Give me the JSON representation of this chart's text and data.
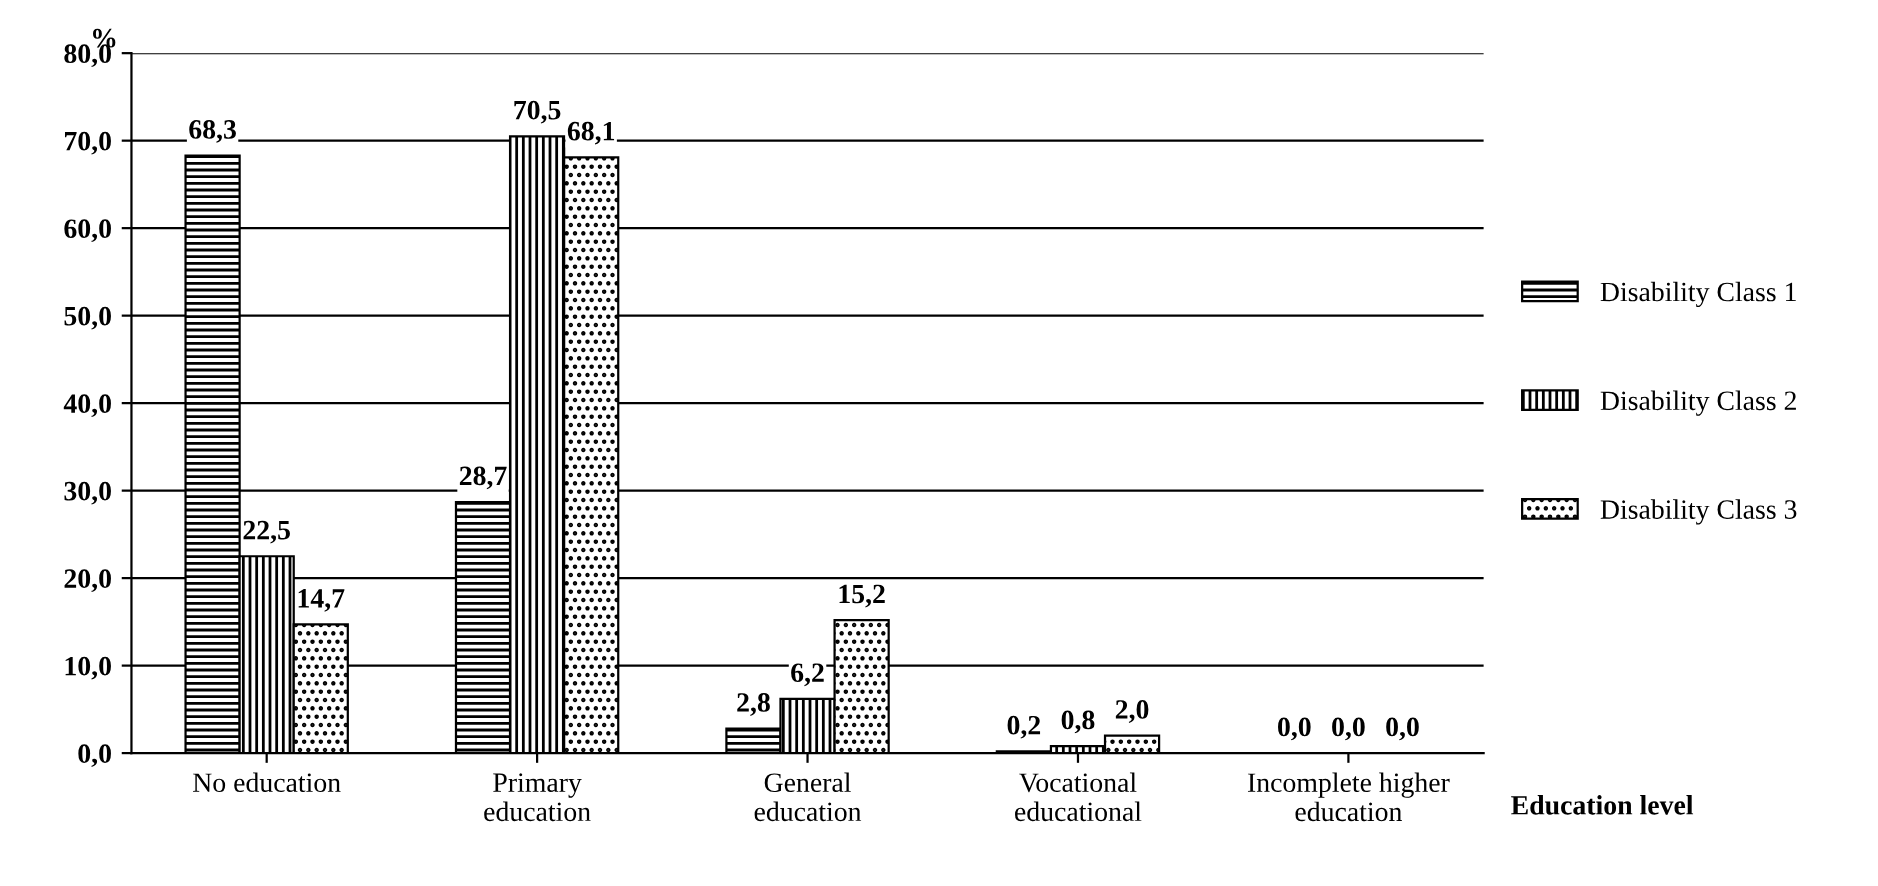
{
  "chart_data": {
    "type": "bar",
    "categories": [
      "No education",
      "Primary education",
      "General education",
      "Vocational educational",
      "Incomplete higher education"
    ],
    "series": [
      {
        "name": "Disability Class 1",
        "color": "#000000",
        "values": [
          68.3,
          28.7,
          2.8,
          0.2,
          0.0
        ],
        "value_labels": [
          "68,3",
          "28,7",
          "2,8",
          "0,2",
          "0,0"
        ]
      },
      {
        "name": "Disability Class 2",
        "color": "#000000",
        "values": [
          22.5,
          70.5,
          6.2,
          0.8,
          0.0
        ],
        "value_labels": [
          "22,5",
          "70,5",
          "6,2",
          "0,8",
          "0,0"
        ]
      },
      {
        "name": "Disability Class 3",
        "color": "#000000",
        "values": [
          14.7,
          68.1,
          15.2,
          2.0,
          0.0
        ],
        "value_labels": [
          "14,7",
          "68,1",
          "15,2",
          "2,0",
          "0,0"
        ]
      }
    ],
    "ylabel": "%",
    "xlabel": "Education level",
    "ylim": [
      0,
      80
    ],
    "yticks": [
      {
        "value": 0,
        "label": "0,0"
      },
      {
        "value": 10,
        "label": "10,0"
      },
      {
        "value": 20,
        "label": "20,0"
      },
      {
        "value": 30,
        "label": "30,0"
      },
      {
        "value": 40,
        "label": "40,0"
      },
      {
        "value": 50,
        "label": "50,0"
      },
      {
        "value": 60,
        "label": "60,0"
      },
      {
        "value": 70,
        "label": "70,0"
      },
      {
        "value": 80,
        "label": "80,0"
      }
    ],
    "grid": "y",
    "legend": "right"
  }
}
